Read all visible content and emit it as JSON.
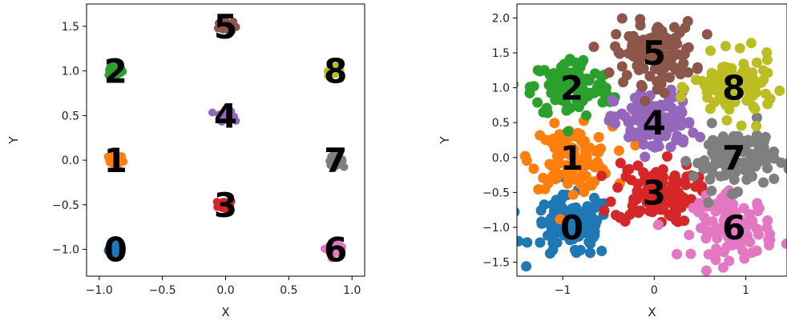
{
  "chart_data": [
    {
      "type": "scatter",
      "xlabel": "X",
      "ylabel": "Y",
      "xlim": [
        -1.1,
        1.1
      ],
      "ylim": [
        -1.3,
        1.75
      ],
      "xticks": [
        -1.0,
        -0.5,
        0.0,
        0.5,
        1.0
      ],
      "yticks": [
        -1.0,
        -0.5,
        0.0,
        0.5,
        1.0,
        1.5
      ],
      "xtick_labels": [
        "−1.0",
        "−0.5",
        "0.0",
        "0.5",
        "1.0"
      ],
      "ytick_labels": [
        "−1.0",
        "−0.5",
        "0.0",
        "0.5",
        "1.0",
        "1.5"
      ],
      "grid": false,
      "spread": 0.03,
      "points_per_cluster": 40,
      "clusters": [
        {
          "label": "0",
          "center": [
            -0.87,
            -1.0
          ],
          "color": "#1f77b4"
        },
        {
          "label": "1",
          "center": [
            -0.87,
            0.0
          ],
          "color": "#ff7f0e"
        },
        {
          "label": "2",
          "center": [
            -0.87,
            1.0
          ],
          "color": "#2ca02c"
        },
        {
          "label": "3",
          "center": [
            0.0,
            -0.5
          ],
          "color": "#d62728"
        },
        {
          "label": "4",
          "center": [
            0.0,
            0.5
          ],
          "color": "#9467bd"
        },
        {
          "label": "5",
          "center": [
            0.0,
            1.5
          ],
          "color": "#8c564b"
        },
        {
          "label": "6",
          "center": [
            0.87,
            -1.0
          ],
          "color": "#e377c2"
        },
        {
          "label": "7",
          "center": [
            0.87,
            0.0
          ],
          "color": "#7f7f7f"
        },
        {
          "label": "8",
          "center": [
            0.87,
            1.0
          ],
          "color": "#bcbd22"
        }
      ]
    },
    {
      "type": "scatter",
      "xlabel": "X",
      "ylabel": "Y",
      "xlim": [
        -1.5,
        1.45
      ],
      "ylim": [
        -1.7,
        2.2
      ],
      "xticks": [
        -1,
        0,
        1
      ],
      "yticks": [
        -1.5,
        -1.0,
        -0.5,
        0.0,
        0.5,
        1.0,
        1.5,
        2.0
      ],
      "xtick_labels": [
        "−1",
        "0",
        "1"
      ],
      "ytick_labels": [
        "−1.5",
        "−1.0",
        "−0.5",
        "0.0",
        "0.5",
        "1.0",
        "1.5",
        "2.0"
      ],
      "grid": false,
      "spread": 0.22,
      "points_per_cluster": 110,
      "clusters": [
        {
          "label": "0",
          "center": [
            -0.9,
            -1.0
          ],
          "color": "#1f77b4"
        },
        {
          "label": "1",
          "center": [
            -0.9,
            0.0
          ],
          "color": "#ff7f0e"
        },
        {
          "label": "2",
          "center": [
            -0.9,
            1.0
          ],
          "color": "#2ca02c"
        },
        {
          "label": "3",
          "center": [
            0.0,
            -0.5
          ],
          "color": "#d62728"
        },
        {
          "label": "4",
          "center": [
            0.0,
            0.5
          ],
          "color": "#9467bd"
        },
        {
          "label": "5",
          "center": [
            0.0,
            1.5
          ],
          "color": "#8c564b"
        },
        {
          "label": "6",
          "center": [
            0.87,
            -1.0
          ],
          "color": "#e377c2"
        },
        {
          "label": "7",
          "center": [
            0.87,
            0.0
          ],
          "color": "#7f7f7f"
        },
        {
          "label": "8",
          "center": [
            0.87,
            1.0
          ],
          "color": "#bcbd22"
        }
      ]
    }
  ]
}
